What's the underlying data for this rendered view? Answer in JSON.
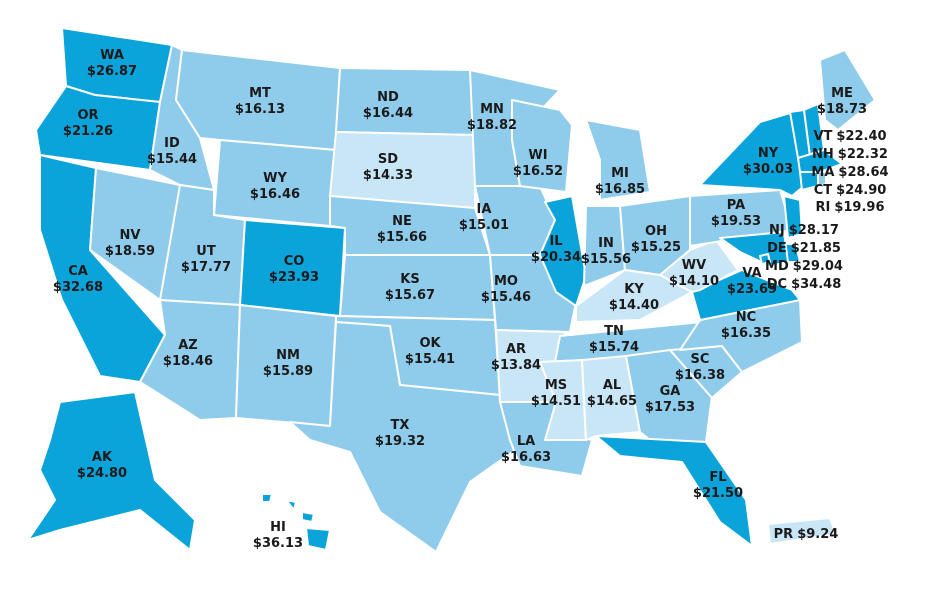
{
  "states": [
    {
      "code": "WA",
      "value": "$26.87",
      "color": "#0aa3da"
    },
    {
      "code": "OR",
      "value": "$21.26",
      "color": "#0aa3da"
    },
    {
      "code": "CA",
      "value": "$32.68",
      "color": "#0aa3da"
    },
    {
      "code": "NV",
      "value": "$18.59",
      "color": "#8fcbeb"
    },
    {
      "code": "ID",
      "value": "$15.44",
      "color": "#8fcbeb"
    },
    {
      "code": "MT",
      "value": "$16.13",
      "color": "#8fcbeb"
    },
    {
      "code": "WY",
      "value": "$16.46",
      "color": "#8fcbeb"
    },
    {
      "code": "UT",
      "value": "$17.77",
      "color": "#8fcbeb"
    },
    {
      "code": "CO",
      "value": "$23.93",
      "color": "#0aa3da"
    },
    {
      "code": "AZ",
      "value": "$18.46",
      "color": "#8fcbeb"
    },
    {
      "code": "NM",
      "value": "$15.89",
      "color": "#8fcbeb"
    },
    {
      "code": "ND",
      "value": "$16.44",
      "color": "#8fcbeb"
    },
    {
      "code": "SD",
      "value": "$14.33",
      "color": "#c8e6f6"
    },
    {
      "code": "NE",
      "value": "$15.66",
      "color": "#8fcbeb"
    },
    {
      "code": "KS",
      "value": "$15.67",
      "color": "#8fcbeb"
    },
    {
      "code": "OK",
      "value": "$15.41",
      "color": "#8fcbeb"
    },
    {
      "code": "TX",
      "value": "$19.32",
      "color": "#8fcbeb"
    },
    {
      "code": "MN",
      "value": "$18.82",
      "color": "#8fcbeb"
    },
    {
      "code": "IA",
      "value": "$15.01",
      "color": "#8fcbeb"
    },
    {
      "code": "MO",
      "value": "$15.46",
      "color": "#8fcbeb"
    },
    {
      "code": "AR",
      "value": "$13.84",
      "color": "#c8e6f6"
    },
    {
      "code": "LA",
      "value": "$16.63",
      "color": "#8fcbeb"
    },
    {
      "code": "WI",
      "value": "$16.52",
      "color": "#8fcbeb"
    },
    {
      "code": "IL",
      "value": "$20.34",
      "color": "#0aa3da"
    },
    {
      "code": "MI",
      "value": "$16.85",
      "color": "#8fcbeb"
    },
    {
      "code": "IN",
      "value": "$15.56",
      "color": "#8fcbeb"
    },
    {
      "code": "OH",
      "value": "$15.25",
      "color": "#8fcbeb"
    },
    {
      "code": "KY",
      "value": "$14.40",
      "color": "#c8e6f6"
    },
    {
      "code": "TN",
      "value": "$15.74",
      "color": "#8fcbeb"
    },
    {
      "code": "MS",
      "value": "$14.51",
      "color": "#c8e6f6"
    },
    {
      "code": "AL",
      "value": "$14.65",
      "color": "#c8e6f6"
    },
    {
      "code": "GA",
      "value": "$17.53",
      "color": "#8fcbeb"
    },
    {
      "code": "FL",
      "value": "$21.50",
      "color": "#0aa3da"
    },
    {
      "code": "SC",
      "value": "$16.38",
      "color": "#8fcbeb"
    },
    {
      "code": "NC",
      "value": "$16.35",
      "color": "#8fcbeb"
    },
    {
      "code": "VA",
      "value": "$23.69",
      "color": "#0aa3da"
    },
    {
      "code": "WV",
      "value": "$14.10",
      "color": "#c8e6f6"
    },
    {
      "code": "PA",
      "value": "$19.53",
      "color": "#8fcbeb"
    },
    {
      "code": "NY",
      "value": "$30.03",
      "color": "#0aa3da"
    },
    {
      "code": "ME",
      "value": "$18.73",
      "color": "#8fcbeb"
    },
    {
      "code": "VT",
      "value": "$22.40",
      "color": "#0aa3da"
    },
    {
      "code": "NH",
      "value": "$22.32",
      "color": "#0aa3da"
    },
    {
      "code": "MA",
      "value": "$28.64",
      "color": "#0aa3da"
    },
    {
      "code": "CT",
      "value": "$24.90",
      "color": "#0aa3da"
    },
    {
      "code": "RI",
      "value": "$19.96",
      "color": "#8fcbeb"
    },
    {
      "code": "NJ",
      "value": "$28.17",
      "color": "#0aa3da"
    },
    {
      "code": "DE",
      "value": "$21.85",
      "color": "#0aa3da"
    },
    {
      "code": "MD",
      "value": "$29.04",
      "color": "#0aa3da"
    },
    {
      "code": "DC",
      "value": "$34.48",
      "color": "#0aa3da"
    },
    {
      "code": "AK",
      "value": "$24.80",
      "color": "#0aa3da"
    },
    {
      "code": "HI",
      "value": "$36.13",
      "color": "#0aa3da"
    },
    {
      "code": "PR",
      "value": "$9.24",
      "color": "#c8e6f6"
    }
  ]
}
